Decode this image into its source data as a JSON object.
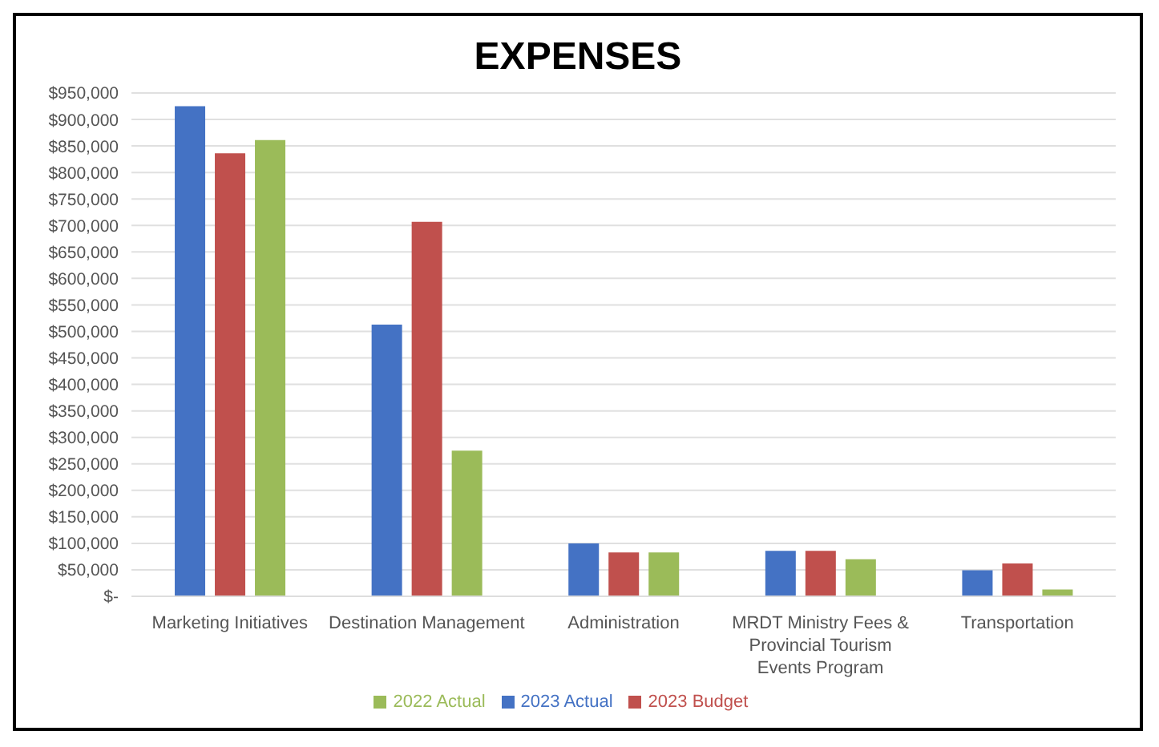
{
  "chart_data": {
    "type": "bar",
    "title": "EXPENSES",
    "categories": [
      "Marketing Initiatives",
      "Destination Management",
      "Administration",
      "MRDT Ministry Fees & Provincial Tourism Events Program",
      "Transportation"
    ],
    "series": [
      {
        "name": "2023 Actual",
        "color": "#4472c4",
        "values": [
          925000,
          513000,
          100000,
          86000,
          49000
        ]
      },
      {
        "name": "2023 Budget",
        "color": "#c0504d",
        "values": [
          836000,
          707000,
          83000,
          86000,
          62000
        ]
      },
      {
        "name": "2022 Actual",
        "color": "#9bbb59",
        "values": [
          861000,
          275000,
          83000,
          70000,
          13000
        ]
      }
    ],
    "ylim": [
      0,
      950000
    ],
    "yticks": [
      {
        "value": 0,
        "label": "$-"
      },
      {
        "value": 50000,
        "label": "$50,000"
      },
      {
        "value": 100000,
        "label": "$100,000"
      },
      {
        "value": 150000,
        "label": "$150,000"
      },
      {
        "value": 200000,
        "label": "$200,000"
      },
      {
        "value": 250000,
        "label": "$250,000"
      },
      {
        "value": 300000,
        "label": "$300,000"
      },
      {
        "value": 350000,
        "label": "$350,000"
      },
      {
        "value": 400000,
        "label": "$400,000"
      },
      {
        "value": 450000,
        "label": "$450,000"
      },
      {
        "value": 500000,
        "label": "$500,000"
      },
      {
        "value": 550000,
        "label": "$550,000"
      },
      {
        "value": 600000,
        "label": "$600,000"
      },
      {
        "value": 650000,
        "label": "$650,000"
      },
      {
        "value": 700000,
        "label": "$700,000"
      },
      {
        "value": 750000,
        "label": "$750,000"
      },
      {
        "value": 800000,
        "label": "$800,000"
      },
      {
        "value": 850000,
        "label": "$850,000"
      },
      {
        "value": 900000,
        "label": "$900,000"
      },
      {
        "value": 950000,
        "label": "$950,000"
      }
    ],
    "grid": "y",
    "legend": "bottom"
  }
}
